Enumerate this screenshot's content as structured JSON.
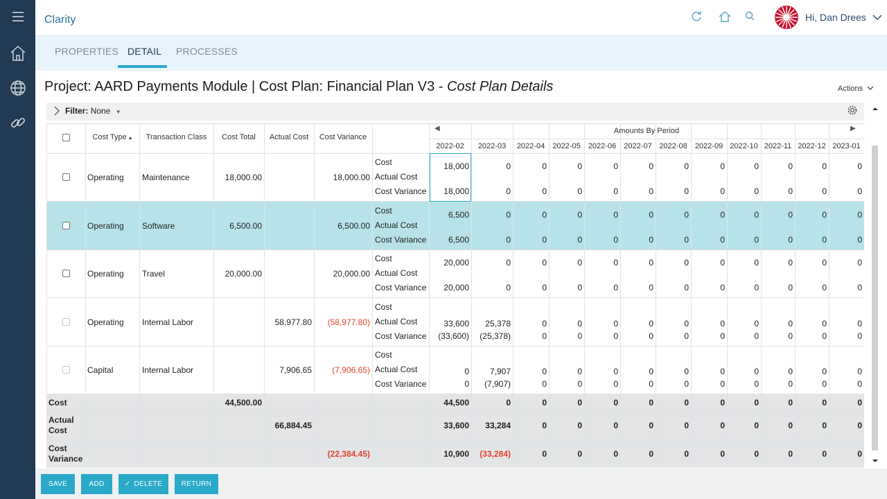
{
  "app": {
    "brand": "Clarity",
    "greeting": "Hi, Dan Drees"
  },
  "tabs": [
    {
      "label": "PROPERTIES"
    },
    {
      "label": "DETAIL"
    },
    {
      "label": "PROCESSES"
    }
  ],
  "page": {
    "title_main": "Project: AARD Payments Module | Cost Plan: Financial Plan V3 - ",
    "title_em": "Cost Plan Details",
    "actions_label": "Actions"
  },
  "filter": {
    "label": "Filter:",
    "value": "None"
  },
  "grid": {
    "columns": {
      "cost_type": "Cost Type",
      "transaction_class": "Transaction Class",
      "cost_total": "Cost Total",
      "actual_cost": "Actual Cost",
      "cost_variance": "Cost Variance",
      "amounts_by_period": "Amounts By Period"
    },
    "periods": [
      "2022-02",
      "2022-03",
      "2022-04",
      "2022-05",
      "2022-06",
      "2022-07",
      "2022-08",
      "2022-09",
      "2022-10",
      "2022-11",
      "2022-12",
      "2023-01"
    ],
    "metric_labels": {
      "cost": "Cost",
      "actual": "Actual Cost",
      "variance": "Cost Variance"
    },
    "rows": [
      {
        "cost_type": "Operating",
        "transaction_class": "Maintenance",
        "cost_total": "18,000.00",
        "actual_cost": "",
        "cost_variance": "18,000.00",
        "cost": [
          "18,000",
          "0",
          "0",
          "0",
          "0",
          "0",
          "0",
          "0",
          "0",
          "0",
          "0",
          "0"
        ],
        "actual": null,
        "variance": [
          "18,000",
          "0",
          "0",
          "0",
          "0",
          "0",
          "0",
          "0",
          "0",
          "0",
          "0",
          "0"
        ]
      },
      {
        "cost_type": "Operating",
        "transaction_class": "Software",
        "cost_total": "6,500.00",
        "actual_cost": "",
        "cost_variance": "6,500.00",
        "cost": [
          "6,500",
          "0",
          "0",
          "0",
          "0",
          "0",
          "0",
          "0",
          "0",
          "0",
          "0",
          "0"
        ],
        "actual": null,
        "variance": [
          "6,500",
          "0",
          "0",
          "0",
          "0",
          "0",
          "0",
          "0",
          "0",
          "0",
          "0",
          "0"
        ]
      },
      {
        "cost_type": "Operating",
        "transaction_class": "Travel",
        "cost_total": "20,000.00",
        "actual_cost": "",
        "cost_variance": "20,000.00",
        "cost": [
          "20,000",
          "0",
          "0",
          "0",
          "0",
          "0",
          "0",
          "0",
          "0",
          "0",
          "0",
          "0"
        ],
        "actual": null,
        "variance": [
          "20,000",
          "0",
          "0",
          "0",
          "0",
          "0",
          "0",
          "0",
          "0",
          "0",
          "0",
          "0"
        ]
      },
      {
        "cost_type": "Operating",
        "transaction_class": "Internal Labor",
        "cost_total": "",
        "actual_cost": "58,977.80",
        "cost_variance": "(58,977.80)",
        "cost": null,
        "actual": [
          "33,600",
          "25,378",
          "0",
          "0",
          "0",
          "0",
          "0",
          "0",
          "0",
          "0",
          "0",
          "0"
        ],
        "variance": [
          "(33,600)",
          "(25,378)",
          "0",
          "0",
          "0",
          "0",
          "0",
          "0",
          "0",
          "0",
          "0",
          "0"
        ]
      },
      {
        "cost_type": "Capital",
        "transaction_class": "Internal Labor",
        "cost_total": "",
        "actual_cost": "7,906.65",
        "cost_variance": "(7,906.65)",
        "cost": null,
        "actual": [
          "0",
          "7,907",
          "0",
          "0",
          "0",
          "0",
          "0",
          "0",
          "0",
          "0",
          "0",
          "0"
        ],
        "variance": [
          "0",
          "(7,907)",
          "0",
          "0",
          "0",
          "0",
          "0",
          "0",
          "0",
          "0",
          "0",
          "0"
        ]
      }
    ],
    "totals": [
      {
        "label": "Cost",
        "col_total": "44,500.00",
        "col_key": "cost_total",
        "values": [
          "44,500",
          "0",
          "0",
          "0",
          "0",
          "0",
          "0",
          "0",
          "0",
          "0",
          "0",
          "0"
        ]
      },
      {
        "label": "Actual Cost",
        "col_total": "66,884.45",
        "col_key": "actual_cost",
        "values": [
          "33,600",
          "33,284",
          "0",
          "0",
          "0",
          "0",
          "0",
          "0",
          "0",
          "0",
          "0",
          "0"
        ]
      },
      {
        "label": "Cost Variance",
        "col_total": "(22,384.45)",
        "col_key": "cost_variance",
        "values": [
          "10,900",
          "(33,284)",
          "0",
          "0",
          "0",
          "0",
          "0",
          "0",
          "0",
          "0",
          "0",
          "0"
        ]
      }
    ]
  },
  "buttons": {
    "save": "SAVE",
    "add": "ADD",
    "delete": "DELETE",
    "return": "RETURN"
  },
  "colors": {
    "accent": "#2aa9c9",
    "rail": "#223a52",
    "negative": "#e0412f",
    "selected_row": "#b7e2e8"
  }
}
